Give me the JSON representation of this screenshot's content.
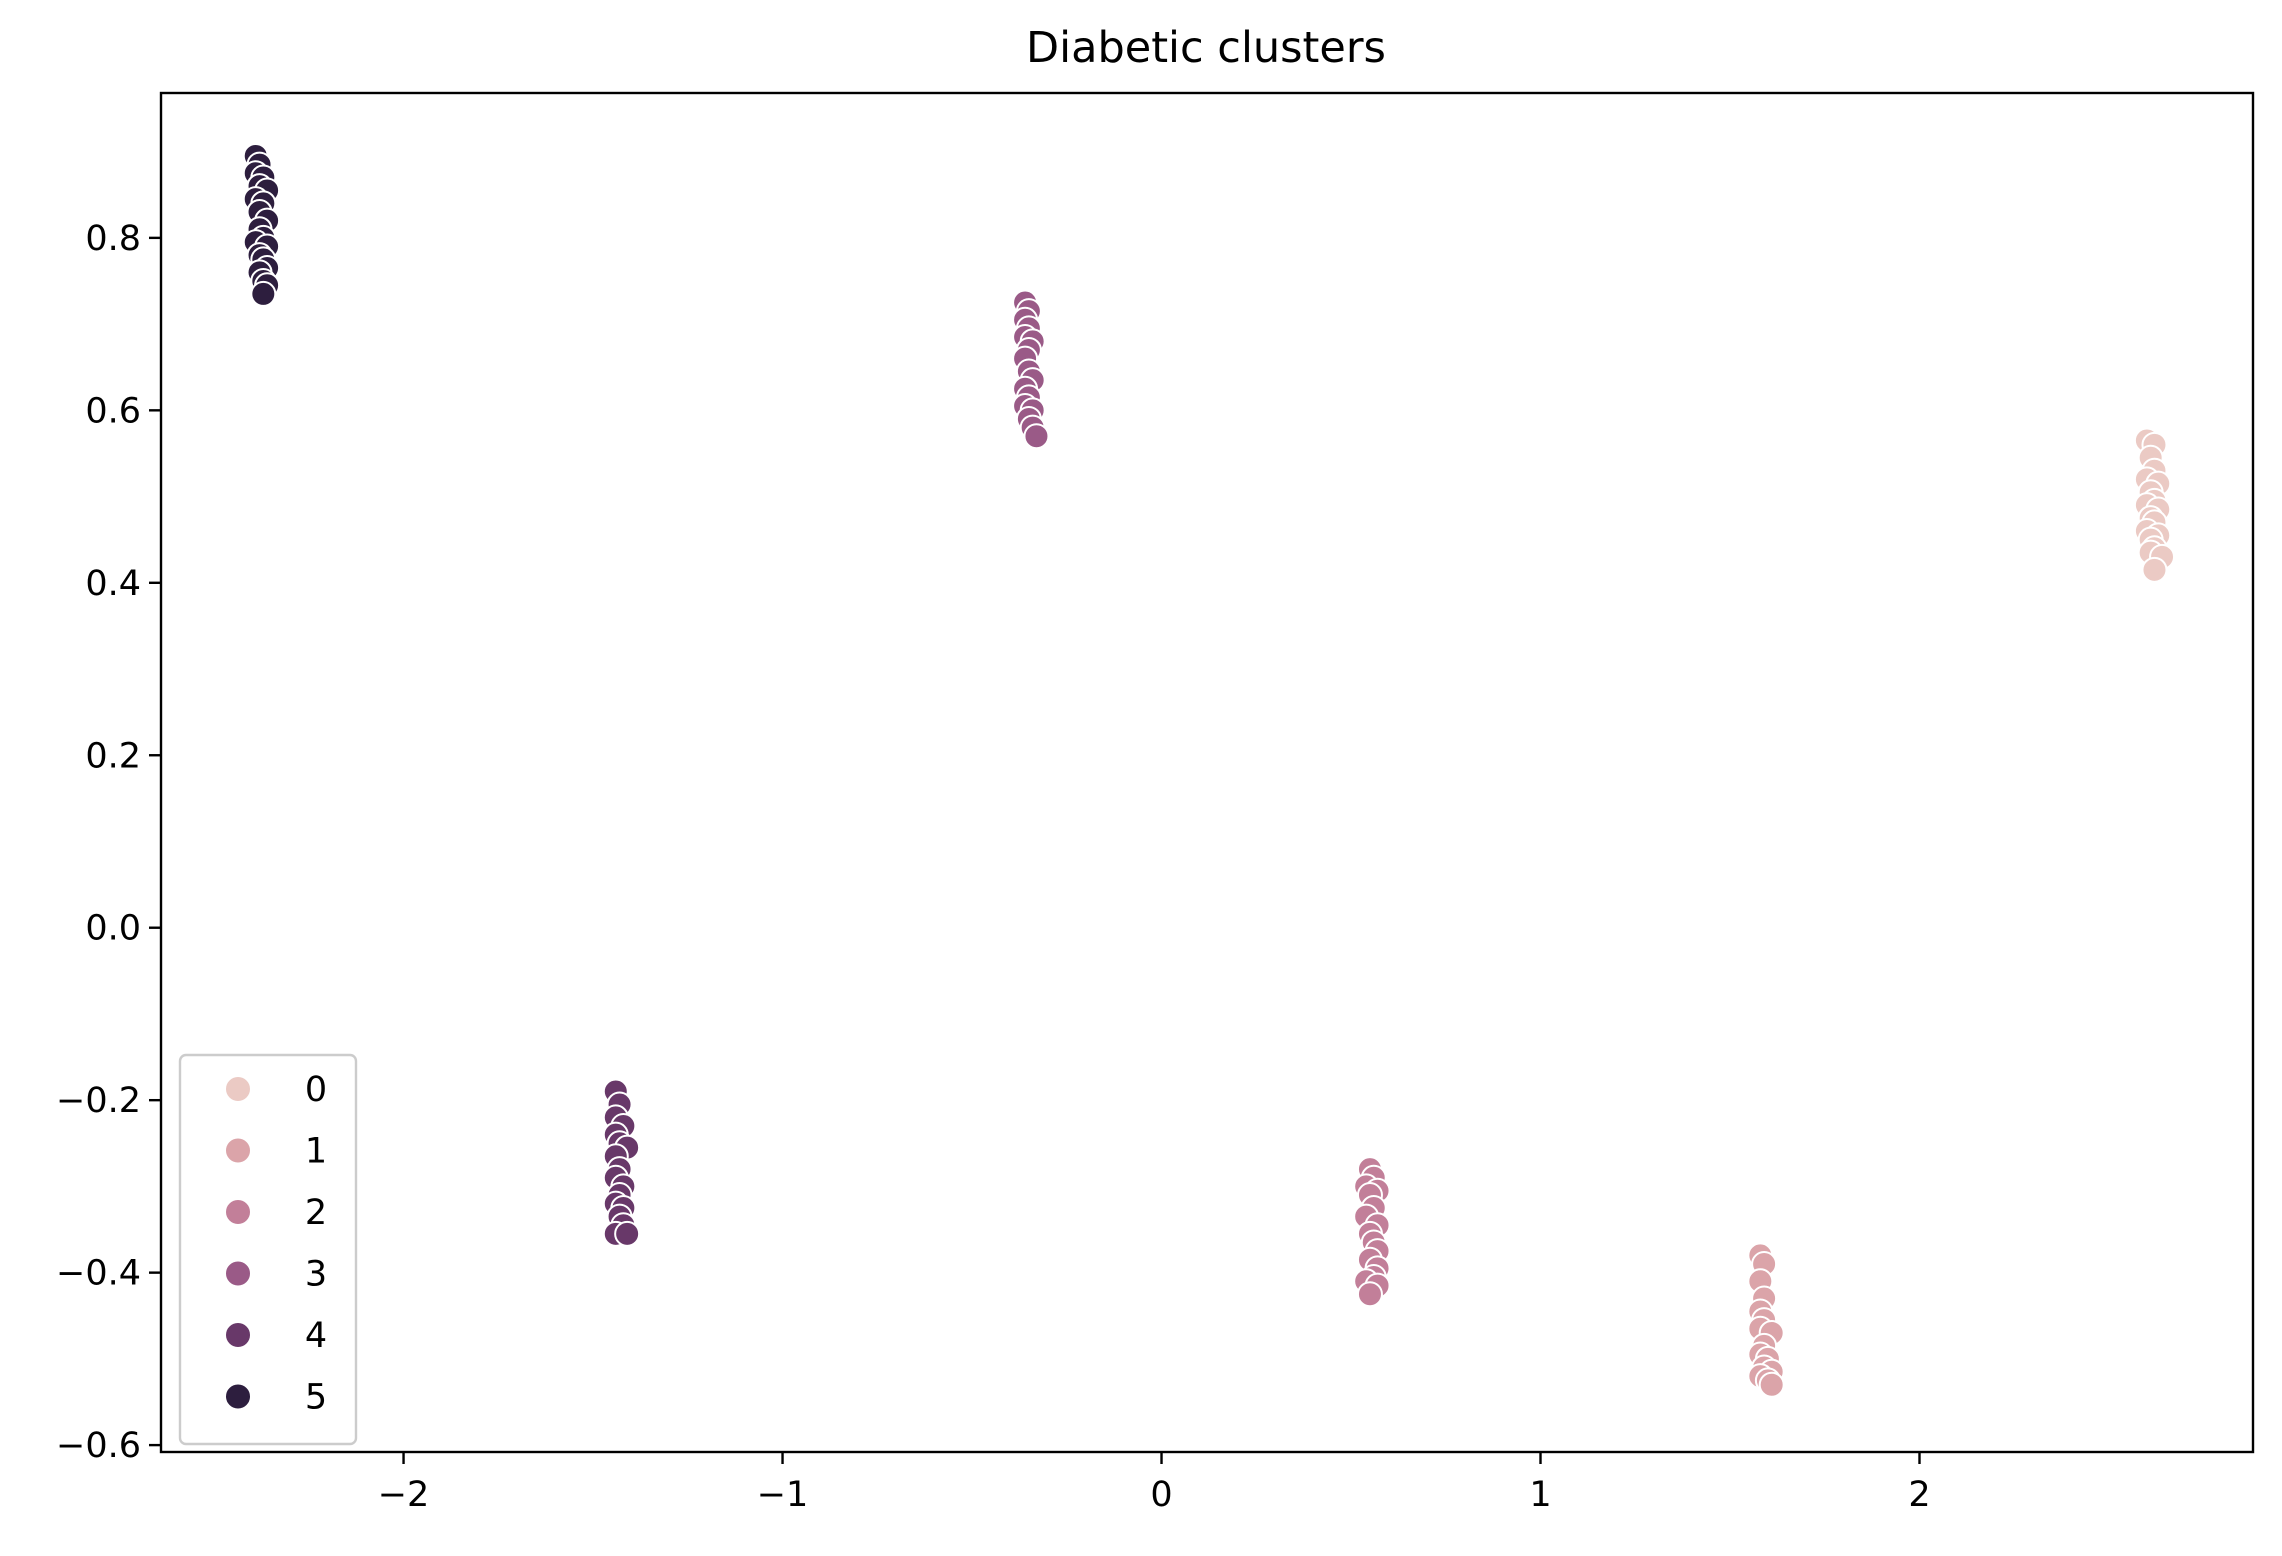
{
  "chart_data": {
    "type": "scatter",
    "title": "Diabetic clusters",
    "xlabel": "",
    "ylabel": "",
    "xlim": [
      -2.64,
      2.88
    ],
    "ylim": [
      -0.608,
      0.968
    ],
    "x_ticks": [
      -2,
      -1,
      0,
      1,
      2
    ],
    "x_tick_labels": [
      "−2",
      "−1",
      "0",
      "1",
      "2"
    ],
    "y_ticks": [
      -0.6,
      -0.4,
      -0.2,
      0.0,
      0.2,
      0.4,
      0.6,
      0.8
    ],
    "y_tick_labels": [
      "−0.6",
      "−0.4",
      "−0.2",
      "0.0",
      "0.2",
      "0.4",
      "0.6",
      "0.8"
    ],
    "grid": false,
    "legend": {
      "position": "lower-left",
      "title": ""
    },
    "series": [
      {
        "name": "0",
        "color": "#ebcac4",
        "points": [
          {
            "x": 2.6,
            "y": 0.565
          },
          {
            "x": 2.62,
            "y": 0.56
          },
          {
            "x": 2.61,
            "y": 0.545
          },
          {
            "x": 2.62,
            "y": 0.53
          },
          {
            "x": 2.6,
            "y": 0.52
          },
          {
            "x": 2.63,
            "y": 0.515
          },
          {
            "x": 2.61,
            "y": 0.505
          },
          {
            "x": 2.62,
            "y": 0.495
          },
          {
            "x": 2.6,
            "y": 0.49
          },
          {
            "x": 2.63,
            "y": 0.485
          },
          {
            "x": 2.61,
            "y": 0.475
          },
          {
            "x": 2.62,
            "y": 0.47
          },
          {
            "x": 2.6,
            "y": 0.46
          },
          {
            "x": 2.63,
            "y": 0.455
          },
          {
            "x": 2.61,
            "y": 0.45
          },
          {
            "x": 2.62,
            "y": 0.44
          },
          {
            "x": 2.61,
            "y": 0.435
          },
          {
            "x": 2.64,
            "y": 0.43
          },
          {
            "x": 2.62,
            "y": 0.415
          }
        ]
      },
      {
        "name": "1",
        "color": "#dba4a9",
        "points": [
          {
            "x": 1.58,
            "y": -0.38
          },
          {
            "x": 1.59,
            "y": -0.39
          },
          {
            "x": 1.58,
            "y": -0.41
          },
          {
            "x": 1.59,
            "y": -0.43
          },
          {
            "x": 1.58,
            "y": -0.445
          },
          {
            "x": 1.59,
            "y": -0.455
          },
          {
            "x": 1.58,
            "y": -0.465
          },
          {
            "x": 1.61,
            "y": -0.47
          },
          {
            "x": 1.59,
            "y": -0.485
          },
          {
            "x": 1.58,
            "y": -0.495
          },
          {
            "x": 1.6,
            "y": -0.5
          },
          {
            "x": 1.59,
            "y": -0.51
          },
          {
            "x": 1.61,
            "y": -0.515
          },
          {
            "x": 1.58,
            "y": -0.52
          },
          {
            "x": 1.6,
            "y": -0.525
          },
          {
            "x": 1.61,
            "y": -0.53
          }
        ]
      },
      {
        "name": "2",
        "color": "#c27f99",
        "points": [
          {
            "x": 0.55,
            "y": -0.28
          },
          {
            "x": 0.56,
            "y": -0.29
          },
          {
            "x": 0.54,
            "y": -0.3
          },
          {
            "x": 0.57,
            "y": -0.305
          },
          {
            "x": 0.55,
            "y": -0.31
          },
          {
            "x": 0.56,
            "y": -0.325
          },
          {
            "x": 0.54,
            "y": -0.335
          },
          {
            "x": 0.57,
            "y": -0.345
          },
          {
            "x": 0.55,
            "y": -0.355
          },
          {
            "x": 0.56,
            "y": -0.365
          },
          {
            "x": 0.57,
            "y": -0.375
          },
          {
            "x": 0.55,
            "y": -0.385
          },
          {
            "x": 0.57,
            "y": -0.395
          },
          {
            "x": 0.56,
            "y": -0.405
          },
          {
            "x": 0.54,
            "y": -0.41
          },
          {
            "x": 0.57,
            "y": -0.415
          },
          {
            "x": 0.55,
            "y": -0.425
          }
        ]
      },
      {
        "name": "3",
        "color": "#9a5a87",
        "points": [
          {
            "x": -0.36,
            "y": 0.725
          },
          {
            "x": -0.35,
            "y": 0.715
          },
          {
            "x": -0.36,
            "y": 0.705
          },
          {
            "x": -0.35,
            "y": 0.695
          },
          {
            "x": -0.36,
            "y": 0.685
          },
          {
            "x": -0.34,
            "y": 0.68
          },
          {
            "x": -0.35,
            "y": 0.67
          },
          {
            "x": -0.36,
            "y": 0.66
          },
          {
            "x": -0.35,
            "y": 0.645
          },
          {
            "x": -0.34,
            "y": 0.635
          },
          {
            "x": -0.36,
            "y": 0.625
          },
          {
            "x": -0.35,
            "y": 0.615
          },
          {
            "x": -0.36,
            "y": 0.605
          },
          {
            "x": -0.34,
            "y": 0.6
          },
          {
            "x": -0.35,
            "y": 0.59
          },
          {
            "x": -0.34,
            "y": 0.58
          },
          {
            "x": -0.33,
            "y": 0.57
          }
        ]
      },
      {
        "name": "4",
        "color": "#683869",
        "points": [
          {
            "x": -1.44,
            "y": -0.19
          },
          {
            "x": -1.43,
            "y": -0.205
          },
          {
            "x": -1.44,
            "y": -0.22
          },
          {
            "x": -1.42,
            "y": -0.23
          },
          {
            "x": -1.44,
            "y": -0.24
          },
          {
            "x": -1.43,
            "y": -0.25
          },
          {
            "x": -1.41,
            "y": -0.255
          },
          {
            "x": -1.44,
            "y": -0.265
          },
          {
            "x": -1.43,
            "y": -0.28
          },
          {
            "x": -1.44,
            "y": -0.29
          },
          {
            "x": -1.42,
            "y": -0.3
          },
          {
            "x": -1.43,
            "y": -0.31
          },
          {
            "x": -1.44,
            "y": -0.32
          },
          {
            "x": -1.42,
            "y": -0.325
          },
          {
            "x": -1.43,
            "y": -0.335
          },
          {
            "x": -1.42,
            "y": -0.345
          },
          {
            "x": -1.44,
            "y": -0.355
          },
          {
            "x": -1.41,
            "y": -0.355
          }
        ]
      },
      {
        "name": "5",
        "color": "#2d1e3e",
        "points": [
          {
            "x": -2.39,
            "y": 0.895
          },
          {
            "x": -2.38,
            "y": 0.885
          },
          {
            "x": -2.39,
            "y": 0.875
          },
          {
            "x": -2.37,
            "y": 0.87
          },
          {
            "x": -2.38,
            "y": 0.86
          },
          {
            "x": -2.36,
            "y": 0.855
          },
          {
            "x": -2.39,
            "y": 0.845
          },
          {
            "x": -2.37,
            "y": 0.84
          },
          {
            "x": -2.38,
            "y": 0.83
          },
          {
            "x": -2.36,
            "y": 0.82
          },
          {
            "x": -2.38,
            "y": 0.81
          },
          {
            "x": -2.37,
            "y": 0.8
          },
          {
            "x": -2.39,
            "y": 0.795
          },
          {
            "x": -2.36,
            "y": 0.79
          },
          {
            "x": -2.38,
            "y": 0.78
          },
          {
            "x": -2.37,
            "y": 0.775
          },
          {
            "x": -2.36,
            "y": 0.765
          },
          {
            "x": -2.38,
            "y": 0.76
          },
          {
            "x": -2.37,
            "y": 0.75
          },
          {
            "x": -2.36,
            "y": 0.745
          },
          {
            "x": -2.37,
            "y": 0.735
          }
        ]
      }
    ]
  }
}
